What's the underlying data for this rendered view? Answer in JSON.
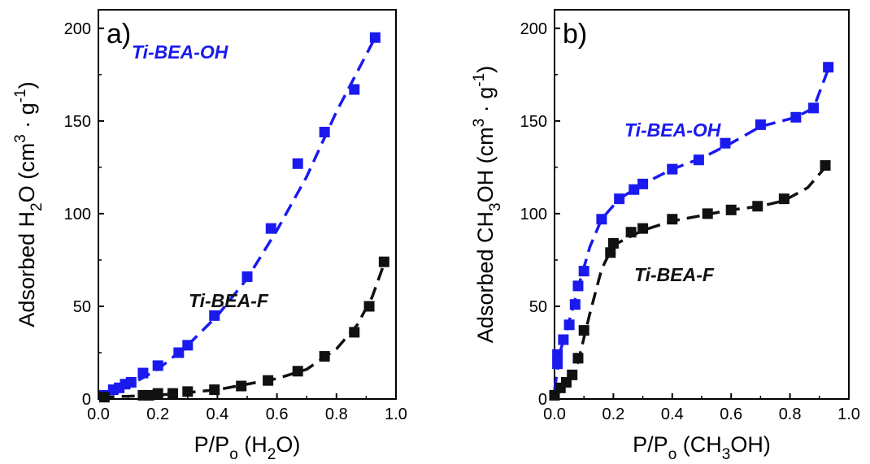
{
  "chart_data": [
    {
      "type": "scatter",
      "panel_label": "a)",
      "xlabel": {
        "main": "P/P",
        "sub": "o",
        "open": " (H",
        "sub2": "2",
        "close": "O)"
      },
      "ylabel": {
        "pre": "Adsorbed H",
        "sub": "2",
        "mid": "O (cm",
        "sup": "3",
        "mid2": " · g",
        "sup2": "-1",
        "post": ")"
      },
      "xlim": [
        0.0,
        1.0
      ],
      "ylim": [
        0,
        210
      ],
      "xticks": [
        "0.0",
        "0.2",
        "0.4",
        "0.6",
        "0.8",
        "1.0"
      ],
      "yticks": [
        "0",
        "50",
        "100",
        "150",
        "200"
      ],
      "xtick_values": [
        0,
        0.2,
        0.4,
        0.6,
        0.8,
        1.0
      ],
      "ytick_values": [
        0,
        50,
        100,
        150,
        200
      ],
      "series": [
        {
          "name": "Ti-BEA-OH",
          "color": "#1a1aee",
          "points": [
            [
              0.02,
              2
            ],
            [
              0.05,
              5
            ],
            [
              0.07,
              6
            ],
            [
              0.09,
              8
            ],
            [
              0.11,
              9
            ],
            [
              0.15,
              14
            ],
            [
              0.2,
              18
            ],
            [
              0.27,
              25
            ],
            [
              0.3,
              29
            ],
            [
              0.39,
              45
            ],
            [
              0.5,
              66
            ],
            [
              0.58,
              92
            ],
            [
              0.67,
              127
            ],
            [
              0.76,
              144
            ],
            [
              0.86,
              167
            ],
            [
              0.93,
              195
            ]
          ],
          "fit": [
            [
              0.01,
              1
            ],
            [
              0.1,
              7
            ],
            [
              0.2,
              16
            ],
            [
              0.3,
              29
            ],
            [
              0.4,
              45
            ],
            [
              0.5,
              65
            ],
            [
              0.6,
              91
            ],
            [
              0.7,
              120
            ],
            [
              0.8,
              155
            ],
            [
              0.93,
              195
            ]
          ]
        },
        {
          "name": "Ti-BEA-F",
          "color": "#111111",
          "points": [
            [
              0.02,
              1
            ],
            [
              0.15,
              2
            ],
            [
              0.17,
              2
            ],
            [
              0.2,
              3
            ],
            [
              0.25,
              3
            ],
            [
              0.3,
              4
            ],
            [
              0.39,
              5
            ],
            [
              0.48,
              7
            ],
            [
              0.57,
              10
            ],
            [
              0.67,
              15
            ],
            [
              0.76,
              23
            ],
            [
              0.86,
              36
            ],
            [
              0.91,
              50
            ],
            [
              0.96,
              74
            ]
          ],
          "fit": [
            [
              0.01,
              1
            ],
            [
              0.2,
              2
            ],
            [
              0.4,
              5
            ],
            [
              0.6,
              11
            ],
            [
              0.7,
              16
            ],
            [
              0.8,
              27
            ],
            [
              0.87,
              40
            ],
            [
              0.92,
              55
            ],
            [
              0.96,
              73
            ]
          ]
        }
      ]
    },
    {
      "type": "scatter",
      "panel_label": "b)",
      "xlabel": {
        "main": "P/P",
        "sub": "o",
        "open": " (CH",
        "sub2": "3",
        "close": "OH)"
      },
      "ylabel": {
        "pre": "Adsorbed CH",
        "sub": "3",
        "mid": "OH (cm",
        "sup": "3",
        "mid2": " · g",
        "sup2": "-1",
        "post": ")"
      },
      "xlim": [
        0.0,
        1.0
      ],
      "ylim": [
        0,
        210
      ],
      "xticks": [
        "0.0",
        "0.2",
        "0.4",
        "0.6",
        "0.8",
        "1.0"
      ],
      "yticks": [
        "0",
        "50",
        "100",
        "150",
        "200"
      ],
      "xtick_values": [
        0,
        0.2,
        0.4,
        0.6,
        0.8,
        1.0
      ],
      "ytick_values": [
        0,
        50,
        100,
        150,
        200
      ],
      "series": [
        {
          "name": "Ti-BEA-OH",
          "color": "#1a1aee",
          "points": [
            [
              0.01,
              19
            ],
            [
              0.01,
              24
            ],
            [
              0.03,
              32
            ],
            [
              0.05,
              40
            ],
            [
              0.07,
              51
            ],
            [
              0.08,
              61
            ],
            [
              0.1,
              69
            ],
            [
              0.16,
              97
            ],
            [
              0.22,
              108
            ],
            [
              0.27,
              113
            ],
            [
              0.3,
              116
            ],
            [
              0.4,
              124
            ],
            [
              0.49,
              129
            ],
            [
              0.58,
              138
            ],
            [
              0.7,
              148
            ],
            [
              0.82,
              152
            ],
            [
              0.88,
              157
            ],
            [
              0.93,
              179
            ]
          ],
          "fit": [
            [
              0.0,
              5
            ],
            [
              0.02,
              26
            ],
            [
              0.05,
              42
            ],
            [
              0.08,
              60
            ],
            [
              0.12,
              82
            ],
            [
              0.16,
              97
            ],
            [
              0.22,
              108
            ],
            [
              0.3,
              116
            ],
            [
              0.4,
              124
            ],
            [
              0.5,
              130
            ],
            [
              0.6,
              138
            ],
            [
              0.7,
              147
            ],
            [
              0.82,
              152
            ],
            [
              0.88,
              157
            ],
            [
              0.93,
              178
            ]
          ]
        },
        {
          "name": "Ti-BEA-F",
          "color": "#111111",
          "points": [
            [
              0.0,
              2
            ],
            [
              0.02,
              6
            ],
            [
              0.04,
              9
            ],
            [
              0.06,
              13
            ],
            [
              0.08,
              22
            ],
            [
              0.1,
              37
            ],
            [
              0.19,
              79
            ],
            [
              0.2,
              84
            ],
            [
              0.26,
              90
            ],
            [
              0.3,
              92
            ],
            [
              0.4,
              97
            ],
            [
              0.52,
              100
            ],
            [
              0.6,
              102
            ],
            [
              0.69,
              104
            ],
            [
              0.78,
              108
            ],
            [
              0.92,
              126
            ]
          ],
          "fit": [
            [
              0.0,
              1
            ],
            [
              0.04,
              8
            ],
            [
              0.08,
              20
            ],
            [
              0.12,
              46
            ],
            [
              0.16,
              70
            ],
            [
              0.2,
              83
            ],
            [
              0.3,
              91
            ],
            [
              0.4,
              96
            ],
            [
              0.5,
              99
            ],
            [
              0.6,
              102
            ],
            [
              0.7,
              104
            ],
            [
              0.78,
              107
            ],
            [
              0.86,
              114
            ],
            [
              0.92,
              125
            ]
          ]
        }
      ]
    }
  ]
}
